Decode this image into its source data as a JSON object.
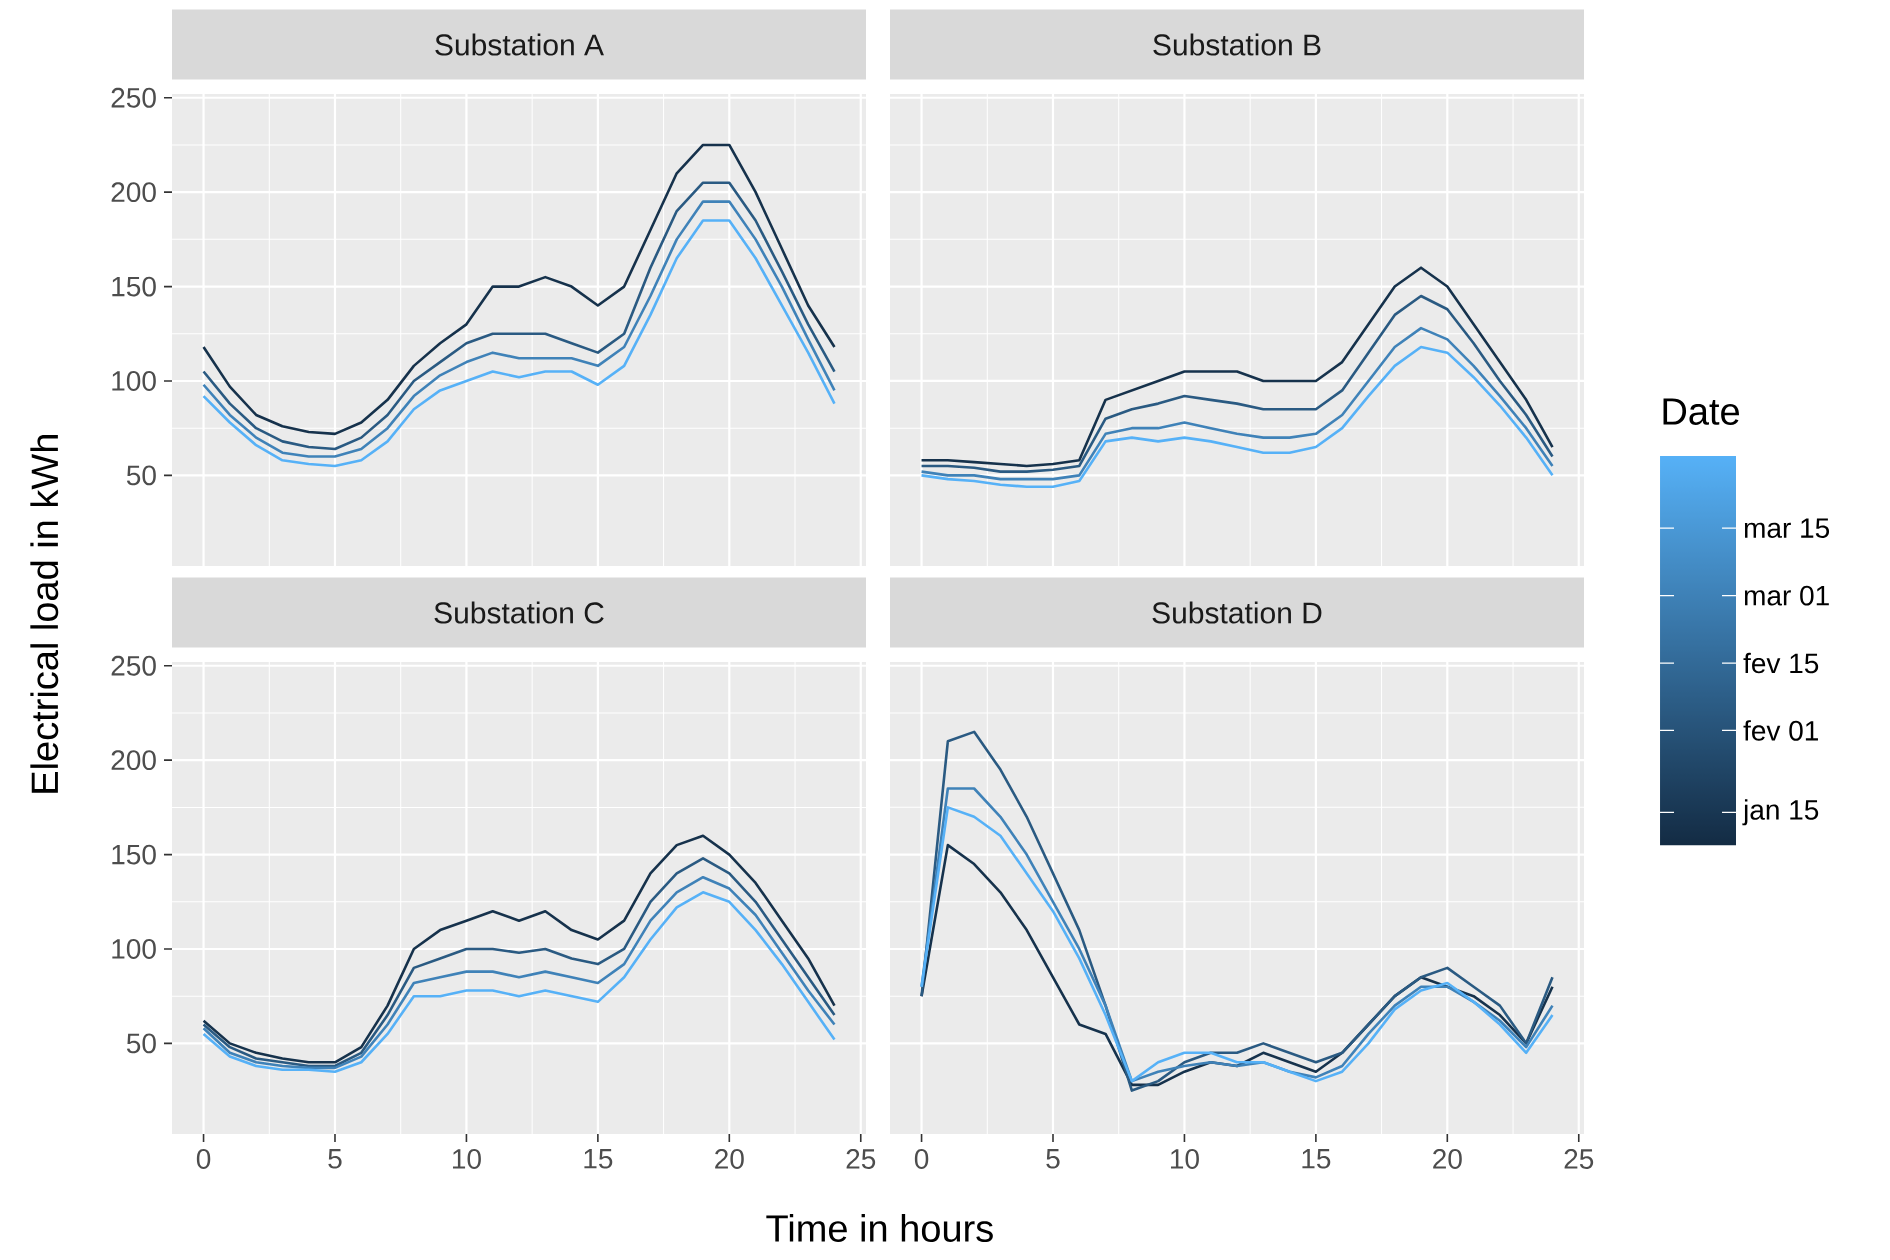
{
  "chart_data": [
    {
      "type": "line",
      "title": "Substation A",
      "ylabel": "Electrical load in kWh",
      "x": [
        0,
        1,
        2,
        3,
        4,
        5,
        6,
        7,
        8,
        9,
        10,
        11,
        12,
        13,
        14,
        15,
        16,
        17,
        18,
        19,
        20,
        21,
        22,
        23,
        24
      ],
      "series": [
        {
          "color": "#16324C",
          "values": [
            118,
            97,
            82,
            76,
            73,
            72,
            78,
            90,
            108,
            120,
            130,
            150,
            150,
            155,
            150,
            140,
            150,
            180,
            210,
            225,
            225,
            200,
            170,
            140,
            118
          ]
        },
        {
          "color": "#2A5A82",
          "values": [
            105,
            88,
            75,
            68,
            65,
            64,
            70,
            82,
            100,
            110,
            120,
            125,
            125,
            125,
            120,
            115,
            125,
            160,
            190,
            205,
            205,
            185,
            158,
            130,
            105
          ]
        },
        {
          "color": "#3F82B8",
          "values": [
            98,
            82,
            70,
            62,
            60,
            60,
            64,
            75,
            92,
            103,
            110,
            115,
            112,
            112,
            112,
            108,
            118,
            145,
            175,
            195,
            195,
            175,
            150,
            122,
            95
          ]
        },
        {
          "color": "#56B1F7",
          "values": [
            92,
            78,
            66,
            58,
            56,
            55,
            58,
            68,
            85,
            95,
            100,
            105,
            102,
            105,
            105,
            98,
            108,
            135,
            165,
            185,
            185,
            165,
            140,
            115,
            88
          ]
        }
      ],
      "xlim": [
        -1.2,
        25.2
      ],
      "ylim": [
        2,
        252
      ],
      "xticks": [
        0,
        5,
        10,
        15,
        20,
        25
      ],
      "yticks": [
        50,
        100,
        150,
        200,
        250
      ],
      "grid": true,
      "tick_labels": "y"
    },
    {
      "type": "line",
      "title": "Substation B",
      "x": [
        0,
        1,
        2,
        3,
        4,
        5,
        6,
        7,
        8,
        9,
        10,
        11,
        12,
        13,
        14,
        15,
        16,
        17,
        18,
        19,
        20,
        21,
        22,
        23,
        24
      ],
      "series": [
        {
          "color": "#16324C",
          "values": [
            58,
            58,
            57,
            56,
            55,
            56,
            58,
            90,
            95,
            100,
            105,
            105,
            105,
            100,
            100,
            100,
            110,
            130,
            150,
            160,
            150,
            130,
            110,
            90,
            65
          ]
        },
        {
          "color": "#2A5A82",
          "values": [
            55,
            55,
            54,
            52,
            52,
            53,
            55,
            80,
            85,
            88,
            92,
            90,
            88,
            85,
            85,
            85,
            95,
            115,
            135,
            145,
            138,
            120,
            100,
            82,
            60
          ]
        },
        {
          "color": "#3F82B8",
          "values": [
            52,
            50,
            50,
            48,
            48,
            48,
            50,
            72,
            75,
            75,
            78,
            75,
            72,
            70,
            70,
            72,
            82,
            100,
            118,
            128,
            122,
            108,
            92,
            75,
            55
          ]
        },
        {
          "color": "#56B1F7",
          "values": [
            50,
            48,
            47,
            45,
            44,
            44,
            47,
            68,
            70,
            68,
            70,
            68,
            65,
            62,
            62,
            65,
            75,
            92,
            108,
            118,
            115,
            102,
            87,
            70,
            50
          ]
        }
      ],
      "xlim": [
        -1.2,
        25.2
      ],
      "ylim": [
        2,
        252
      ],
      "xticks": [
        0,
        5,
        10,
        15,
        20,
        25
      ],
      "yticks": [
        50,
        100,
        150,
        200,
        250
      ],
      "grid": true,
      "tick_labels": false,
      "clabel": "Date",
      "clim": [
        8,
        89
      ],
      "cticks": [
        {
          "value": 15,
          "label": "jan 15"
        },
        {
          "value": 32,
          "label": "fev 01"
        },
        {
          "value": 46,
          "label": "fev 15"
        },
        {
          "value": 60,
          "label": "mar 01"
        },
        {
          "value": 74,
          "label": "mar 15"
        }
      ]
    },
    {
      "type": "line",
      "title": "Substation C",
      "xlabel": "Time in hours",
      "x": [
        0,
        1,
        2,
        3,
        4,
        5,
        6,
        7,
        8,
        9,
        10,
        11,
        12,
        13,
        14,
        15,
        16,
        17,
        18,
        19,
        20,
        21,
        22,
        23,
        24
      ],
      "series": [
        {
          "color": "#16324C",
          "values": [
            62,
            50,
            45,
            42,
            40,
            40,
            48,
            70,
            100,
            110,
            115,
            120,
            115,
            120,
            110,
            105,
            115,
            140,
            155,
            160,
            150,
            135,
            115,
            95,
            70
          ]
        },
        {
          "color": "#2A5A82",
          "values": [
            60,
            48,
            42,
            40,
            38,
            38,
            45,
            65,
            90,
            95,
            100,
            100,
            98,
            100,
            95,
            92,
            100,
            125,
            140,
            148,
            140,
            125,
            105,
            85,
            65
          ]
        },
        {
          "color": "#3F82B8",
          "values": [
            58,
            45,
            40,
            38,
            37,
            37,
            43,
            60,
            82,
            85,
            88,
            88,
            85,
            88,
            85,
            82,
            92,
            115,
            130,
            138,
            132,
            118,
            98,
            78,
            60
          ]
        },
        {
          "color": "#56B1F7",
          "values": [
            55,
            43,
            38,
            36,
            36,
            35,
            40,
            55,
            75,
            75,
            78,
            78,
            75,
            78,
            75,
            72,
            85,
            105,
            122,
            130,
            125,
            110,
            92,
            72,
            52
          ]
        }
      ],
      "xlim": [
        -1.2,
        25.2
      ],
      "ylim": [
        2,
        252
      ],
      "xticks": [
        0,
        5,
        10,
        15,
        20,
        25
      ],
      "yticks": [
        50,
        100,
        150,
        200,
        250
      ],
      "grid": true
    },
    {
      "type": "line",
      "title": "Substation D",
      "x": [
        0,
        1,
        2,
        3,
        4,
        5,
        6,
        7,
        8,
        9,
        10,
        11,
        12,
        13,
        14,
        15,
        16,
        17,
        18,
        19,
        20,
        21,
        22,
        23,
        24
      ],
      "series": [
        {
          "color": "#16324C",
          "values": [
            75,
            155,
            145,
            130,
            110,
            85,
            60,
            55,
            28,
            28,
            35,
            40,
            38,
            45,
            40,
            35,
            45,
            60,
            75,
            85,
            80,
            75,
            65,
            50,
            80
          ]
        },
        {
          "color": "#2A5A82",
          "values": [
            75,
            210,
            215,
            195,
            170,
            140,
            110,
            70,
            25,
            30,
            40,
            45,
            45,
            50,
            45,
            40,
            45,
            60,
            75,
            85,
            90,
            80,
            70,
            50,
            85
          ]
        },
        {
          "color": "#3F82B8",
          "values": [
            80,
            185,
            185,
            170,
            150,
            125,
            100,
            70,
            30,
            35,
            38,
            40,
            38,
            40,
            35,
            32,
            38,
            55,
            70,
            80,
            80,
            72,
            62,
            48,
            70
          ]
        },
        {
          "color": "#56B1F7",
          "values": [
            80,
            175,
            170,
            160,
            140,
            120,
            95,
            65,
            30,
            40,
            45,
            45,
            40,
            40,
            35,
            30,
            35,
            50,
            68,
            78,
            82,
            72,
            60,
            45,
            65
          ]
        }
      ],
      "xlim": [
        -1.2,
        25.2
      ],
      "ylim": [
        2,
        252
      ],
      "xticks": [
        0,
        5,
        10,
        15,
        20,
        25
      ],
      "yticks": [
        50,
        100,
        150,
        200,
        250
      ],
      "grid": true,
      "tick_labels": "x"
    }
  ]
}
